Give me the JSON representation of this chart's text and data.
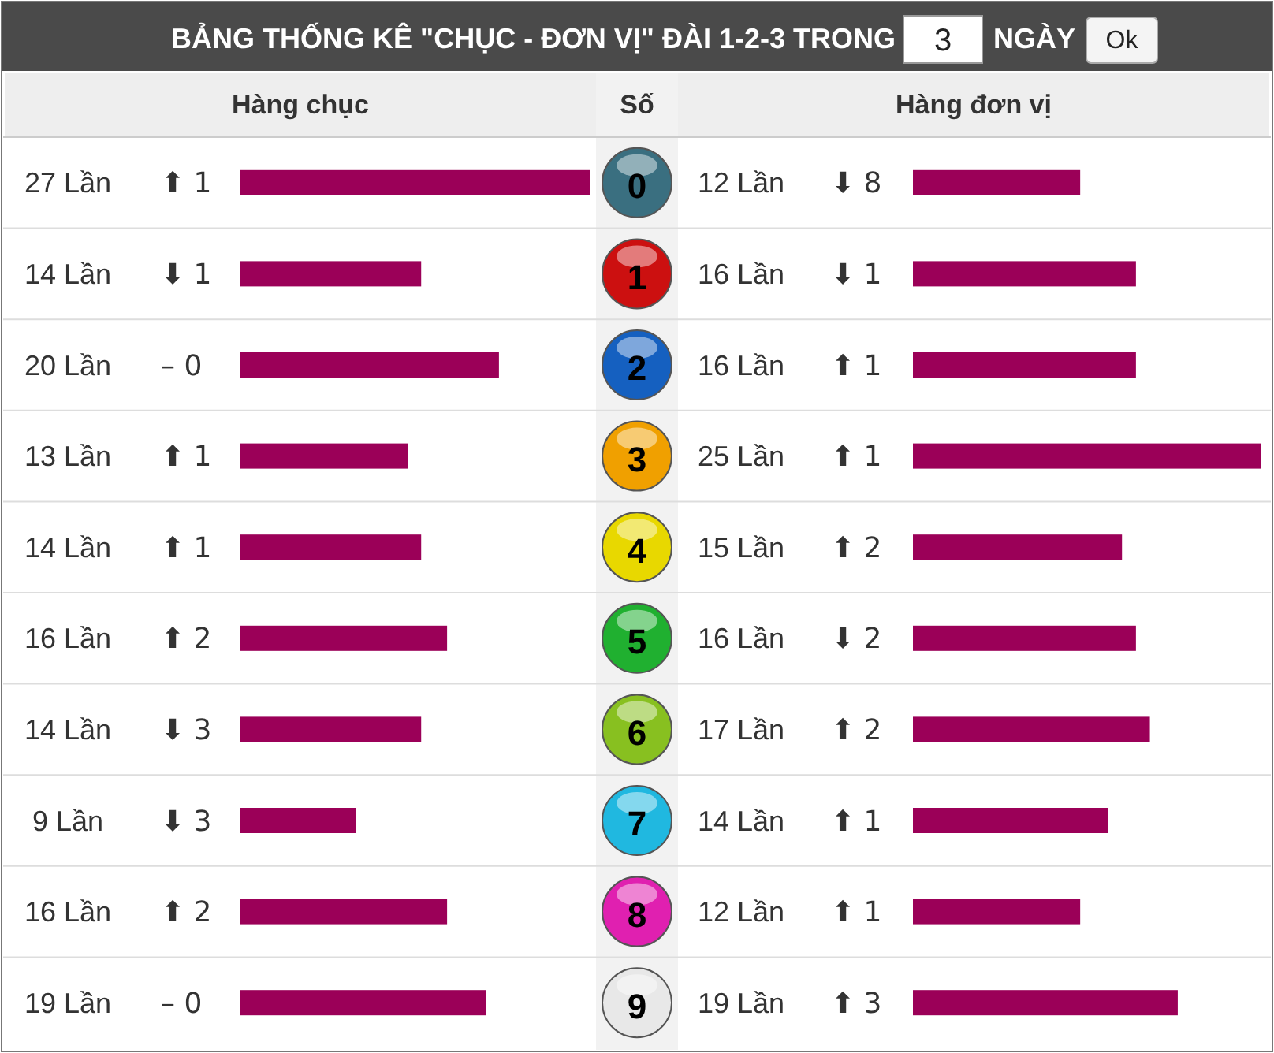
{
  "chart_data": [
    {
      "type": "bar",
      "orientation": "horizontal",
      "title": "BẢNG THỐNG KÊ \"CHỤC - ĐƠN VỊ\" ĐÀI 1-2-3 TRONG",
      "xlabel": "Hàng chục",
      "ylabel": "Số",
      "categories": [
        "0",
        "1",
        "2",
        "3",
        "4",
        "5",
        "6",
        "7",
        "8",
        "9"
      ],
      "xlim": [
        0,
        27
      ],
      "annotations": [
        "3",
        "NGÀY",
        "Ok",
        "⬆ 1",
        "⬇ 1",
        "– 0",
        "⬆ 1",
        "⬆ 1",
        "⬆ 2",
        "⬇ 3",
        "⬇ 3",
        "⬆ 2",
        "– 0"
      ],
      "series": [
        {
          "color": "#9b0058",
          "values": [
            27,
            14,
            20,
            13,
            14,
            16,
            14,
            9,
            16,
            19
          ],
          "value_labels": [
            "27 Lần",
            "14 Lần",
            "20 Lần",
            "13 Lần",
            "14 Lần",
            "16 Lần",
            "14 Lần",
            "9 Lần",
            "16 Lần",
            "19 Lần"
          ]
        }
      ]
    },
    {
      "type": "bar",
      "orientation": "horizontal",
      "xlabel": "Hàng đơn vị",
      "categories": [
        "0",
        "1",
        "2",
        "3",
        "4",
        "5",
        "6",
        "7",
        "8",
        "9"
      ],
      "tick_labels": false,
      "xlim": [
        0,
        25
      ],
      "annotations": [
        "⬇ 8",
        "⬇ 1",
        "⬆ 1",
        "⬆ 1",
        "⬆ 2",
        "⬇ 2",
        "⬆ 2",
        "⬆ 1",
        "⬆ 1",
        "⬆ 3"
      ],
      "series": [
        {
          "color": "#9b0058",
          "values": [
            12,
            16,
            16,
            25,
            15,
            16,
            17,
            14,
            12,
            19
          ],
          "value_labels": [
            "12 Lần",
            "16 Lần",
            "16 Lần",
            "25 Lần",
            "15 Lần",
            "16 Lần",
            "17 Lần",
            "14 Lần",
            "12 Lần",
            "19 Lần"
          ]
        }
      ]
    }
  ]
}
